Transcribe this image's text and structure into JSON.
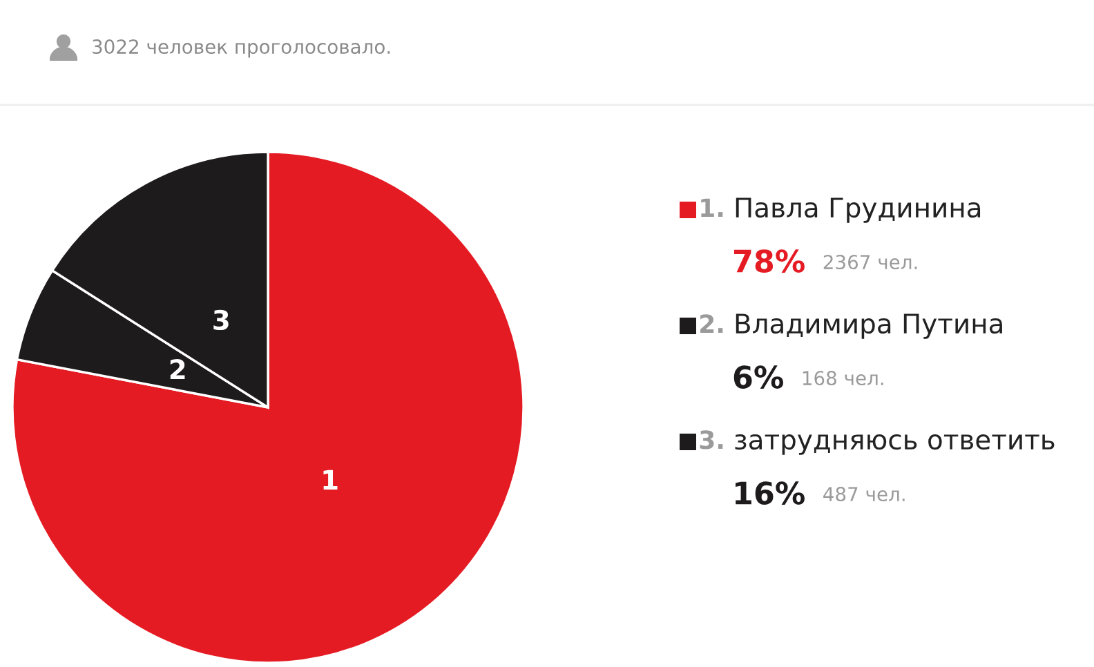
{
  "chart_data": {
    "type": "pie",
    "title": "3022 человек проголосовало.",
    "categories": [
      "Павла Грудинина",
      "Владимира Путина",
      "затрудняюсь ответить"
    ],
    "values": [
      78,
      6,
      16
    ],
    "colors": [
      "#e51b24",
      "#1e1b1c",
      "#1e1b1c"
    ],
    "value_labels": [
      "78%",
      "6%",
      "16%"
    ],
    "annotations": [
      "2367 чел.",
      "168 чел.",
      "487 чел.",
      "1",
      "2",
      "3",
      "1.",
      "2.",
      "3."
    ],
    "legend": "right"
  }
}
